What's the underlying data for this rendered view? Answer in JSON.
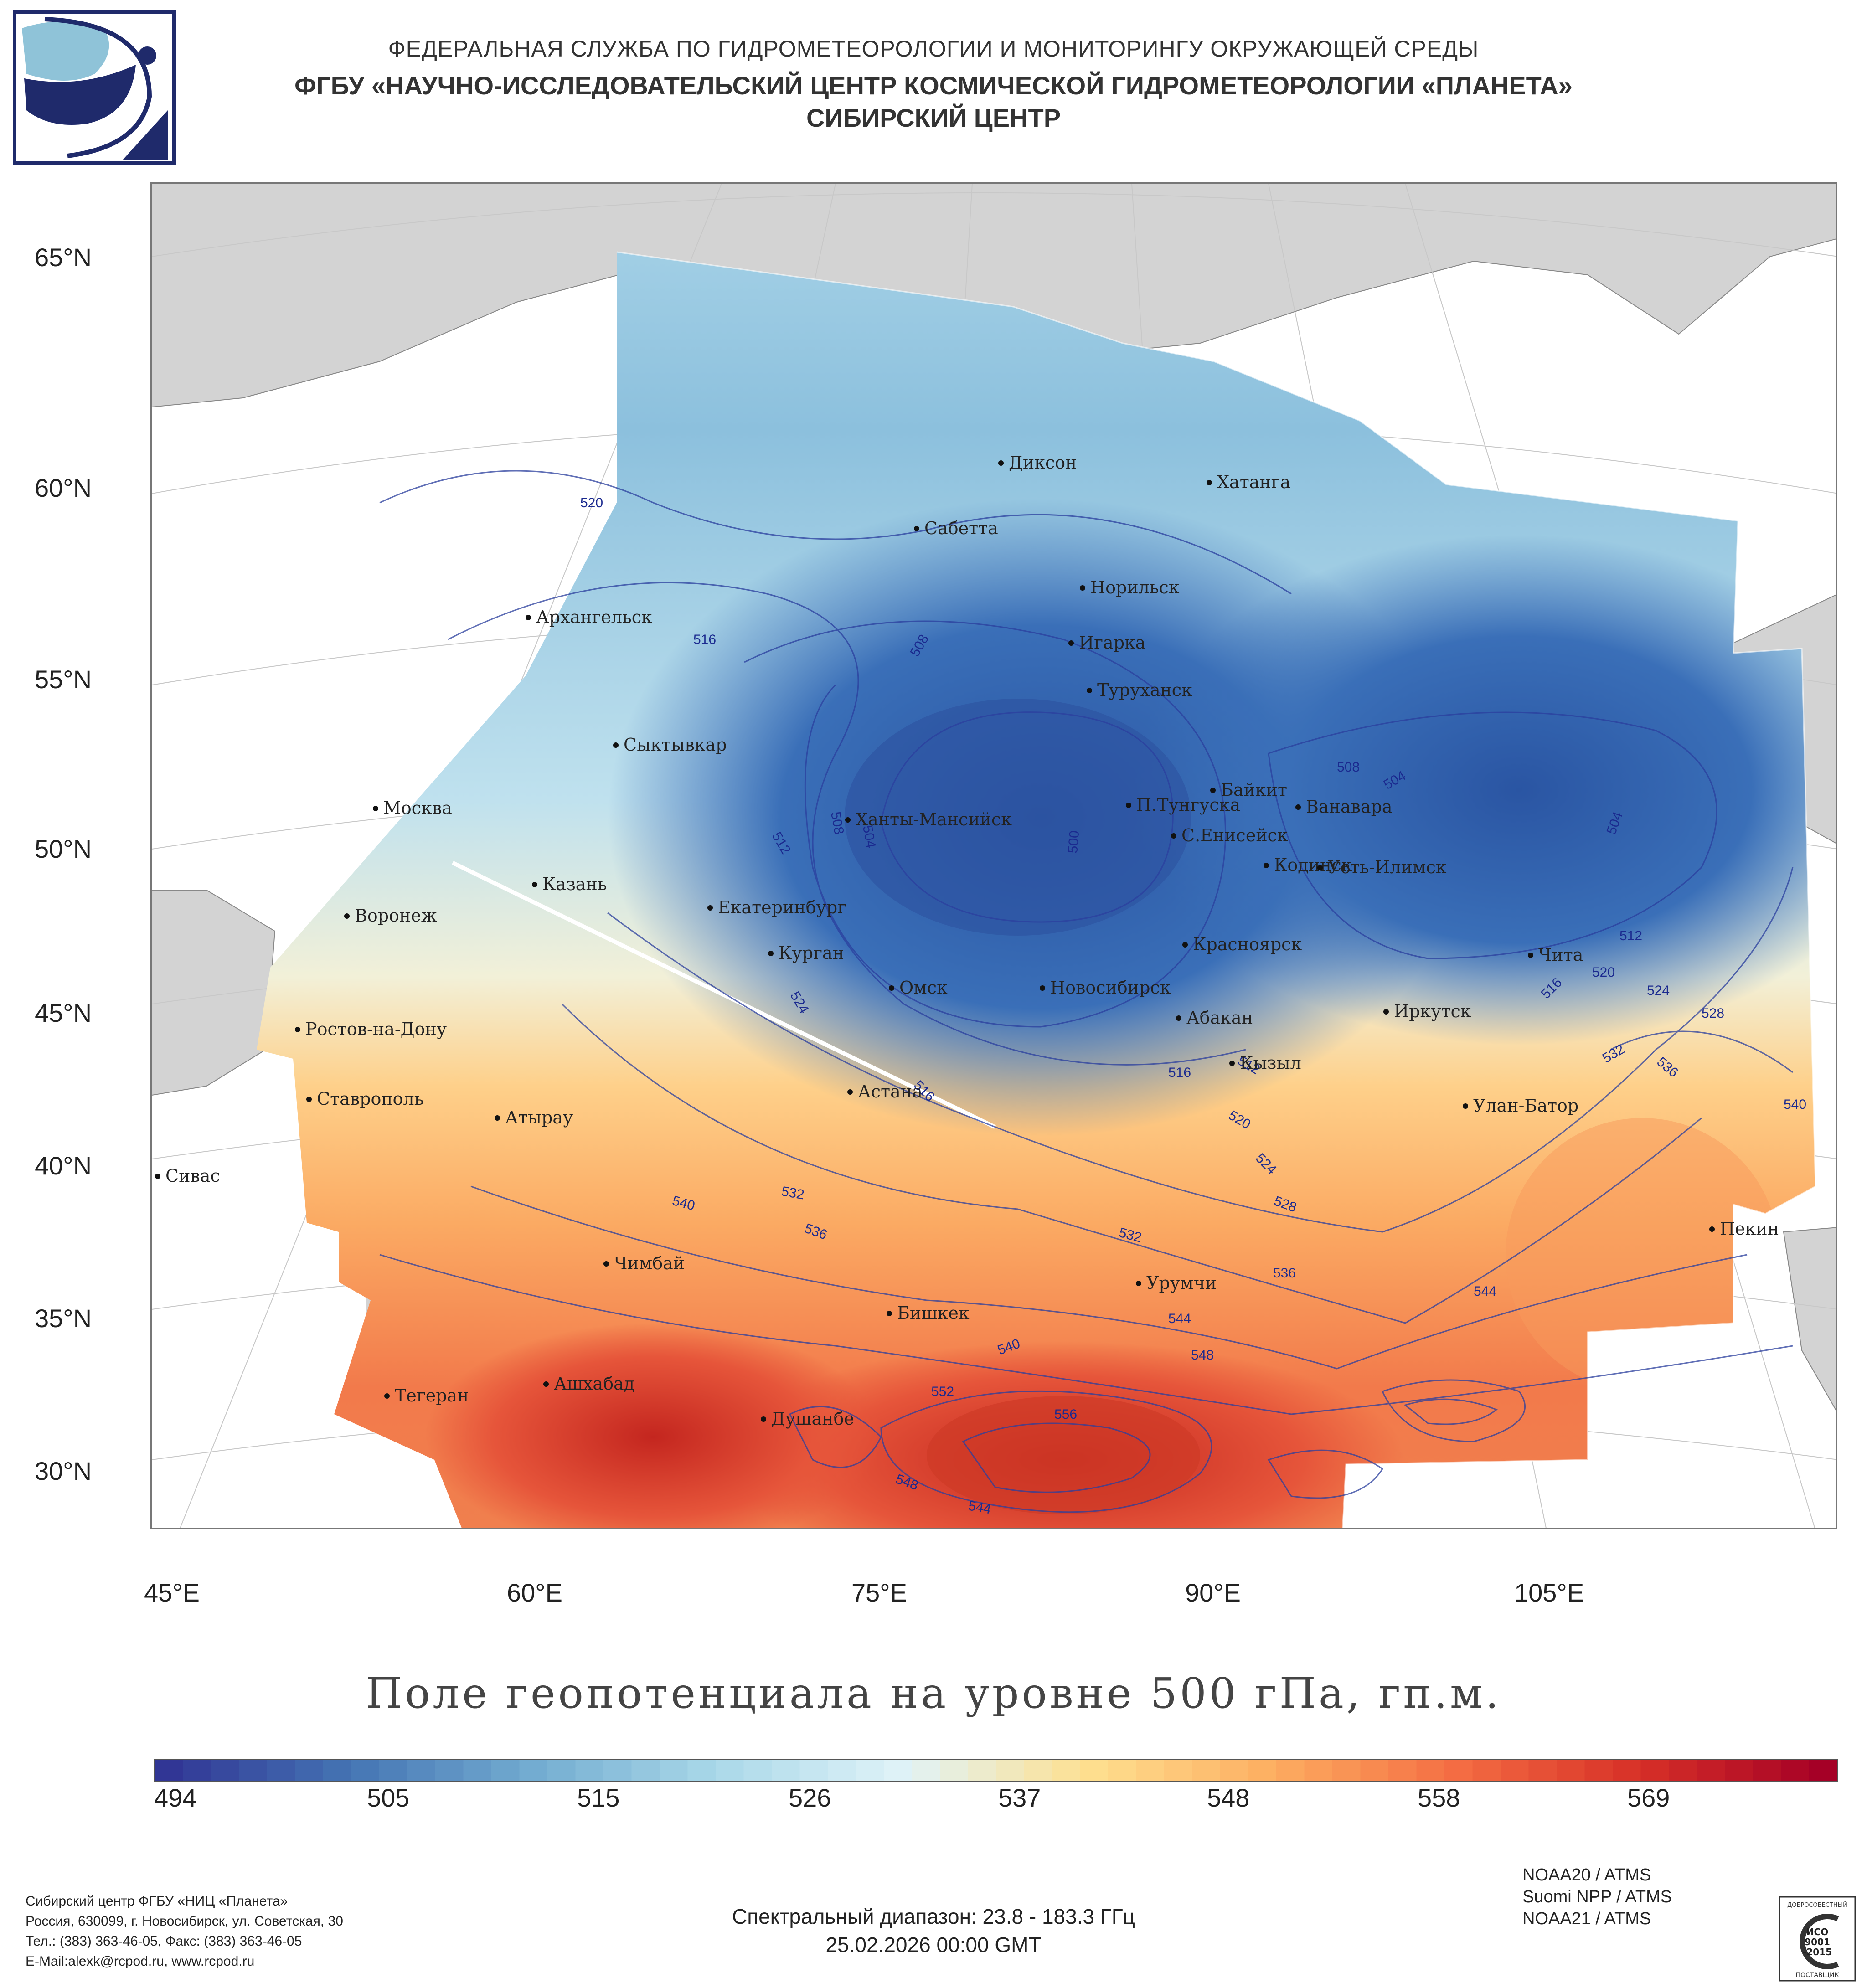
{
  "header": {
    "line1": "ФЕДЕРАЛЬНАЯ СЛУЖБА ПО ГИДРОМЕТЕОРОЛОГИИ И МОНИТОРИНГУ ОКРУЖАЮЩЕЙ СРЕДЫ",
    "line2": "ФГБУ «НАУЧНО-ИССЛЕДОВАТЕЛЬСКИЙ ЦЕНТР КОСМИЧЕСКОЙ ГИДРОМЕТЕОРОЛОГИИ «ПЛАНЕТА»",
    "line3": "СИБИРСКИЙ ЦЕНТР"
  },
  "map": {
    "lat_labels": [
      "65°N",
      "60°N",
      "55°N",
      "50°N",
      "45°N",
      "40°N",
      "35°N",
      "30°N"
    ],
    "lon_labels": [
      "45°E",
      "60°E",
      "75°E",
      "90°E",
      "105°E"
    ],
    "cities": [
      "Диксон",
      "Хатанга",
      "Сабетта",
      "Норильск",
      "Архангельск",
      "Игарка",
      "Туруханск",
      "Сыктывкар",
      "Байкит",
      "Москва",
      "Ханты-Мансийск",
      "П.Тунгуска",
      "Ванавара",
      "С.Енисейск",
      "Кодинск",
      "Усть-Илимск",
      "Казань",
      "Екатеринбург",
      "Воронеж",
      "Красноярск",
      "Курган",
      "Чита",
      "Омск",
      "Новосибирск",
      "Иркутск",
      "Абакан",
      "Ростов-на-Дону",
      "Кызыл",
      "Астана",
      "Ставрополь",
      "Улан-Батор",
      "Атырау",
      "Сивас",
      "Пекин",
      "Чимбай",
      "Урумчи",
      "Бишкек",
      "Ашхабад",
      "Тегеран",
      "Душанбе"
    ],
    "contour_labels": [
      "520",
      "516",
      "508",
      "512",
      "508",
      "504",
      "500",
      "524",
      "516",
      "504",
      "504",
      "508",
      "512",
      "516",
      "520",
      "524",
      "528",
      "532",
      "536",
      "540",
      "516",
      "512",
      "520",
      "524",
      "528",
      "532",
      "536",
      "540",
      "532",
      "536",
      "544",
      "540",
      "548",
      "552",
      "556",
      "548",
      "544",
      "544"
    ]
  },
  "title": "Поле геопотенциала на уровне 500 гПа, гп.м.",
  "colorbar": {
    "ticks": [
      "494",
      "505",
      "515",
      "526",
      "537",
      "548",
      "558",
      "569"
    ],
    "colors": [
      "#313695",
      "#4575b4",
      "#74add1",
      "#abd9e9",
      "#e0f3f8",
      "#fee090",
      "#fdae61",
      "#f46d43",
      "#d73027",
      "#a50026"
    ]
  },
  "footer": {
    "org": [
      "Сибирский центр ФГБУ «НИЦ «Планета»",
      "Россия, 630099, г. Новосибирск, ул. Советская, 30",
      "Тел.: (383) 363-46-05, Факс: (383) 363-46-05",
      "E-Mail:alexk@rcpod.ru, www.rcpod.ru"
    ],
    "spectral": "Спектральный диапазон: 23.8 - 183.3 ГГц",
    "datetime": "25.02.2026 00:00 GMT",
    "sensors": [
      "NOAA20 / ATMS",
      "Suomi NPP / ATMS",
      "NOAA21 / ATMS"
    ],
    "iso_top": "ДОБРОСОВЕСТНЫЙ",
    "iso_main": [
      "ИСО",
      "9001",
      "-2015"
    ],
    "iso_bottom": "ПОСТАВЩИК"
  }
}
